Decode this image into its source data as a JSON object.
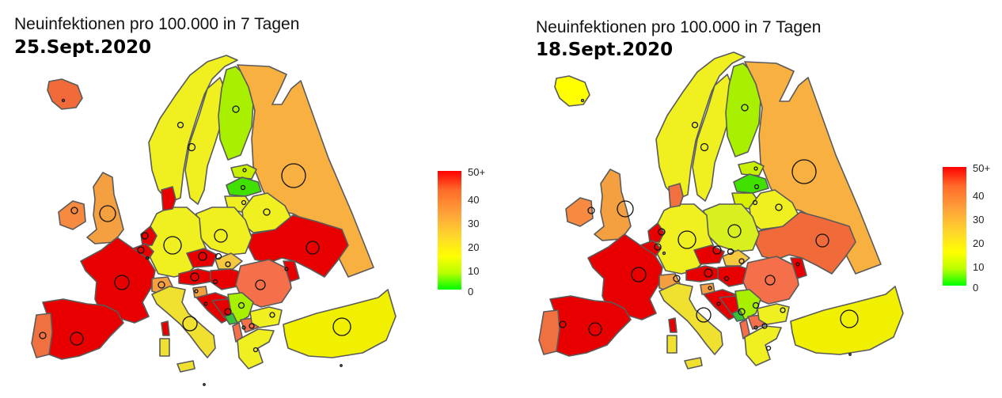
{
  "legend": {
    "labels": [
      "50+",
      "40",
      "30",
      "20",
      "10",
      "0"
    ],
    "colors": {
      "high": "#ff0000",
      "mid_high": "#ff6a2a",
      "mid": "#ffd92a",
      "low_mid": "#ffff00",
      "low": "#00ff00"
    }
  },
  "panels": [
    {
      "title": "Neuinfektionen pro 100.000 in 7 Tagen",
      "date": "25.Sept.2020",
      "countries": {
        "iceland": "#f06a3a",
        "norway": "#f0f020",
        "sweden": "#f0f020",
        "finland": "#a8f000",
        "russia": "#f8b040",
        "estonia": "#c8f000",
        "latvia": "#40e000",
        "lithuania": "#f0f020",
        "belarus": "#f0f020",
        "ukraine": "#e80000",
        "poland": "#f0f020",
        "germany": "#f0f020",
        "denmark": "#e80000",
        "netherlands": "#e80000",
        "belgium": "#e80000",
        "uk": "#f5a040",
        "ireland": "#f58a40",
        "france": "#e80000",
        "spain": "#e80000",
        "portugal": "#f07040",
        "switzerland": "#f5a040",
        "austria": "#e80000",
        "czechia": "#e80000",
        "slovakia": "#f5c840",
        "hungary": "#e80000",
        "romania": "#f5704a",
        "moldova": "#e80000",
        "italy": "#f0e030",
        "slovenia": "#f5a040",
        "croatia": "#e80000",
        "bosnia": "#e80000",
        "serbia": "#a8f000",
        "montenegro": "#38c038",
        "albania": "#f5704a",
        "north_macedonia": "#f5704a",
        "bulgaria": "#f0f020",
        "greece": "#f0f020",
        "turkey": "#f0f000",
        "corsica": "#e80000",
        "sardinia": "#f0e030",
        "sicily": "#f0e030"
      }
    },
    {
      "title": "Neuinfektionen pro 100.000 in 7 Tagen",
      "date": "18.Sept.2020",
      "countries": {
        "iceland": "#ffff00",
        "norway": "#f0f020",
        "sweden": "#f0f020",
        "finland": "#a8f000",
        "russia": "#f8b040",
        "estonia": "#c8f000",
        "latvia": "#40e000",
        "lithuania": "#d8f000",
        "belarus": "#f0f020",
        "ukraine": "#f06a3a",
        "poland": "#d8f020",
        "germany": "#f0f020",
        "denmark": "#f07040",
        "netherlands": "#e80000",
        "belgium": "#e80000",
        "uk": "#f5a040",
        "ireland": "#f58a40",
        "france": "#e80000",
        "spain": "#e80000",
        "portugal": "#f07040",
        "switzerland": "#f5a040",
        "austria": "#e80000",
        "czechia": "#e80000",
        "slovakia": "#f5c840",
        "hungary": "#e80000",
        "romania": "#f5704a",
        "moldova": "#e80000",
        "italy": "#f0e030",
        "slovenia": "#f5a040",
        "croatia": "#e80000",
        "bosnia": "#e80000",
        "serbia": "#a8f000",
        "montenegro": "#38c038",
        "albania": "#f5704a",
        "north_macedonia": "#f5704a",
        "bulgaria": "#f0f020",
        "greece": "#f0f020",
        "turkey": "#f0f000",
        "corsica": "#e80000",
        "sardinia": "#f0e030",
        "sicily": "#f0e030"
      }
    }
  ]
}
